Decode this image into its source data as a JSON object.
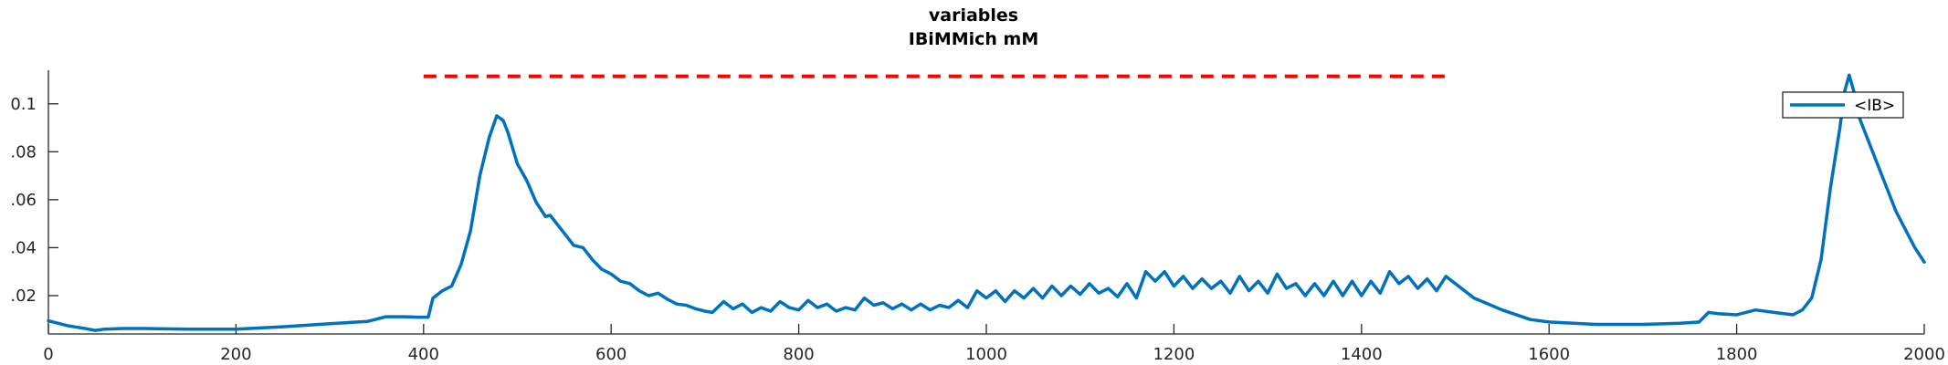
{
  "chart_data": {
    "type": "line",
    "title": "variables",
    "subtitle": "IBiMMich mM",
    "xlabel": "",
    "ylabel": "",
    "xlim": [
      0,
      2000
    ],
    "ylim": [
      0.004,
      0.114
    ],
    "xticks": [
      0,
      200,
      400,
      600,
      800,
      1000,
      1200,
      1400,
      1600,
      1800,
      2000
    ],
    "yticks": [
      0.02,
      0.04,
      0.06,
      0.08,
      0.1
    ],
    "ytick_labels": [
      ".02",
      ".04",
      ".06",
      ".08",
      "0.1"
    ],
    "grid": false,
    "legend_position": "top-right",
    "reference_line": {
      "style": "dashed",
      "color": "#ff0000",
      "x_start": 400,
      "x_end": 1490,
      "y": 0.1115
    },
    "series": [
      {
        "name": "<IB>",
        "color": "#0072bd",
        "x": [
          0,
          20,
          40,
          50,
          60,
          80,
          100,
          150,
          200,
          250,
          300,
          340,
          360,
          380,
          395,
          405,
          410,
          420,
          430,
          440,
          450,
          460,
          470,
          478,
          485,
          490,
          500,
          510,
          520,
          530,
          535,
          540,
          550,
          560,
          570,
          580,
          590,
          600,
          610,
          620,
          630,
          640,
          650,
          660,
          670,
          680,
          690,
          700,
          708,
          720,
          730,
          740,
          750,
          760,
          770,
          780,
          790,
          800,
          810,
          820,
          830,
          840,
          850,
          860,
          870,
          880,
          890,
          900,
          910,
          920,
          930,
          940,
          950,
          960,
          970,
          980,
          990,
          1000,
          1010,
          1020,
          1030,
          1040,
          1050,
          1060,
          1070,
          1080,
          1090,
          1100,
          1110,
          1120,
          1130,
          1140,
          1150,
          1160,
          1170,
          1180,
          1190,
          1200,
          1210,
          1220,
          1230,
          1240,
          1250,
          1260,
          1270,
          1280,
          1290,
          1300,
          1310,
          1320,
          1330,
          1340,
          1350,
          1360,
          1370,
          1380,
          1390,
          1400,
          1410,
          1420,
          1430,
          1440,
          1450,
          1460,
          1470,
          1480,
          1490,
          1500,
          1520,
          1550,
          1580,
          1600,
          1650,
          1700,
          1740,
          1760,
          1770,
          1780,
          1800,
          1820,
          1840,
          1860,
          1870,
          1880,
          1890,
          1900,
          1910,
          1915,
          1920,
          1925,
          1930,
          1950,
          1970,
          1990,
          2000
        ],
        "y": [
          0.0095,
          0.0075,
          0.0062,
          0.0055,
          0.006,
          0.0063,
          0.0063,
          0.006,
          0.006,
          0.007,
          0.0083,
          0.0092,
          0.0112,
          0.0112,
          0.011,
          0.011,
          0.019,
          0.022,
          0.024,
          0.033,
          0.047,
          0.07,
          0.086,
          0.095,
          0.093,
          0.088,
          0.075,
          0.068,
          0.059,
          0.053,
          0.0535,
          0.051,
          0.046,
          0.041,
          0.04,
          0.035,
          0.031,
          0.029,
          0.026,
          0.025,
          0.022,
          0.02,
          0.021,
          0.0185,
          0.0165,
          0.016,
          0.0145,
          0.0135,
          0.013,
          0.0175,
          0.0145,
          0.0165,
          0.013,
          0.015,
          0.0135,
          0.0175,
          0.015,
          0.014,
          0.018,
          0.015,
          0.0165,
          0.0135,
          0.015,
          0.014,
          0.019,
          0.016,
          0.017,
          0.0145,
          0.0165,
          0.014,
          0.0165,
          0.014,
          0.016,
          0.015,
          0.018,
          0.015,
          0.022,
          0.019,
          0.022,
          0.0175,
          0.022,
          0.019,
          0.023,
          0.019,
          0.024,
          0.02,
          0.024,
          0.0205,
          0.025,
          0.021,
          0.023,
          0.0195,
          0.025,
          0.019,
          0.03,
          0.026,
          0.03,
          0.024,
          0.028,
          0.023,
          0.027,
          0.023,
          0.026,
          0.021,
          0.028,
          0.022,
          0.026,
          0.021,
          0.029,
          0.023,
          0.025,
          0.02,
          0.025,
          0.02,
          0.026,
          0.02,
          0.026,
          0.02,
          0.026,
          0.021,
          0.03,
          0.025,
          0.028,
          0.023,
          0.027,
          0.022,
          0.028,
          0.025,
          0.019,
          0.014,
          0.01,
          0.009,
          0.008,
          0.008,
          0.0085,
          0.009,
          0.013,
          0.0125,
          0.012,
          0.014,
          0.013,
          0.012,
          0.014,
          0.019,
          0.035,
          0.065,
          0.09,
          0.105,
          0.112,
          0.105,
          0.095,
          0.075,
          0.055,
          0.04,
          0.034
        ]
      }
    ]
  }
}
